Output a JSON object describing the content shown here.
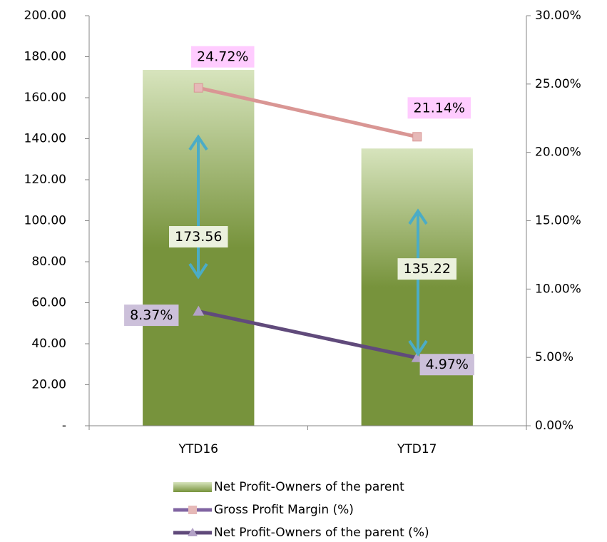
{
  "chart_data": {
    "type": "bar",
    "categories": [
      "YTD16",
      "YTD17"
    ],
    "series": [
      {
        "name": "Net Profit-Owners of the parent",
        "type": "bar",
        "color": "#77933c",
        "values": [
          173.56,
          135.22
        ],
        "value_labels": [
          "173.56",
          "135.22"
        ]
      },
      {
        "name": "Gross Profit Margin (%)",
        "type": "line",
        "axis": "y2",
        "color": "#d99694",
        "values": [
          24.72,
          21.14
        ],
        "value_labels": [
          "24.72%",
          "21.14%"
        ]
      },
      {
        "name": "Net Profit-Owners of the parent (%)",
        "type": "line",
        "axis": "y2",
        "color": "#604a7b",
        "values": [
          8.37,
          4.97
        ],
        "value_labels": [
          "8.37%",
          "4.97%"
        ]
      }
    ],
    "ylim": [
      0,
      200
    ],
    "yticks": [
      {
        "value": 0,
        "label": "-"
      },
      {
        "value": 20,
        "label": "20.00"
      },
      {
        "value": 40,
        "label": "40.00"
      },
      {
        "value": 60,
        "label": "60.00"
      },
      {
        "value": 80,
        "label": "80.00"
      },
      {
        "value": 100,
        "label": "100.00"
      },
      {
        "value": 120,
        "label": "120.00"
      },
      {
        "value": 140,
        "label": "140.00"
      },
      {
        "value": 160,
        "label": "160.00"
      },
      {
        "value": 180,
        "label": "180.00"
      },
      {
        "value": 200,
        "label": "200.00"
      }
    ],
    "y2lim": [
      0,
      30
    ],
    "y2ticks": [
      {
        "value": 0,
        "label": "0.00%"
      },
      {
        "value": 5,
        "label": "5.00%"
      },
      {
        "value": 10,
        "label": "10.00%"
      },
      {
        "value": 15,
        "label": "15.00%"
      },
      {
        "value": 20,
        "label": "20.00%"
      },
      {
        "value": 25,
        "label": "25.00%"
      },
      {
        "value": 30,
        "label": "30.00%"
      }
    ],
    "legend": "bottom"
  }
}
